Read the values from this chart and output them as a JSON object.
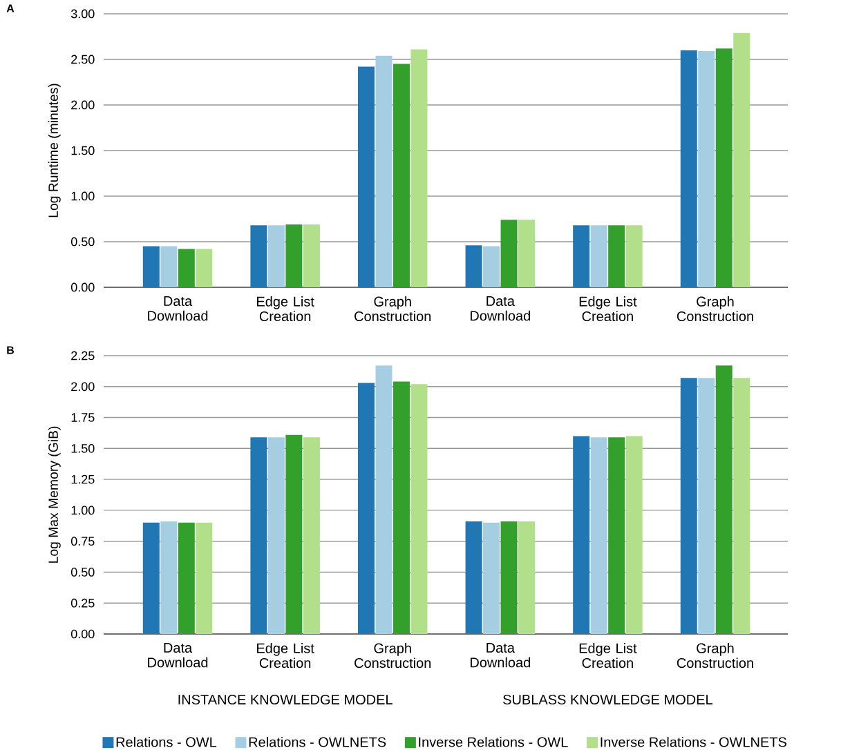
{
  "chart_data": [
    {
      "type": "bar",
      "title": "A",
      "ylabel": "Log Runtime (minutes)",
      "categories": [
        "Data Download",
        "Edge List Creation",
        "Graph Construction",
        "Data Download",
        "Edge List Creation",
        "Graph Construction"
      ],
      "series": [
        {
          "color": "#2077b4",
          "values": [
            0.45,
            0.68,
            2.42,
            0.46,
            0.68,
            2.6
          ]
        },
        {
          "color": "#a6cee3",
          "values": [
            0.45,
            0.68,
            2.54,
            0.45,
            0.68,
            2.59
          ]
        },
        {
          "color": "#33a02c",
          "values": [
            0.42,
            0.69,
            2.45,
            0.74,
            0.68,
            2.62
          ]
        },
        {
          "color": "#b2df8a",
          "values": [
            0.42,
            0.69,
            2.61,
            0.74,
            0.68,
            2.79
          ]
        }
      ],
      "ylim": [
        0,
        3
      ],
      "yticks": [
        {
          "value": 0,
          "label": "0.00"
        },
        {
          "value": 0.5,
          "label": "0.50"
        },
        {
          "value": 1,
          "label": "1.00"
        },
        {
          "value": 1.5,
          "label": "1.50"
        },
        {
          "value": 2,
          "label": "2.00"
        },
        {
          "value": 2.5,
          "label": "2.50"
        },
        {
          "value": 3,
          "label": "3.00"
        }
      ],
      "grid": "y"
    },
    {
      "type": "bar",
      "title": "B",
      "ylabel": "Log Max Memory (GiB)",
      "categories": [
        "Data Download",
        "Edge List Creation",
        "Graph Construction",
        "Data Download",
        "Edge List Creation",
        "Graph Construction"
      ],
      "series": [
        {
          "name": "Relations - OWL",
          "color": "#2077b4",
          "values": [
            0.9,
            1.59,
            2.03,
            0.91,
            1.6,
            2.07
          ]
        },
        {
          "name": "Relations - OWLNETS",
          "color": "#a6cee3",
          "values": [
            0.91,
            1.59,
            2.17,
            0.9,
            1.59,
            2.07
          ]
        },
        {
          "name": "Inverse Relations - OWL",
          "color": "#33a02c",
          "values": [
            0.9,
            1.61,
            2.04,
            0.91,
            1.59,
            2.17
          ]
        },
        {
          "name": "Inverse Relations - OWLNETS",
          "color": "#b2df8a",
          "values": [
            0.9,
            1.59,
            2.02,
            0.91,
            1.6,
            2.07
          ]
        }
      ],
      "ylim": [
        0,
        2.25
      ],
      "yticks": [
        {
          "value": 0,
          "label": "0.00"
        },
        {
          "value": 0.25,
          "label": "0.25"
        },
        {
          "value": 0.5,
          "label": "0.50"
        },
        {
          "value": 0.75,
          "label": "0.75"
        },
        {
          "value": 1,
          "label": "1.00"
        },
        {
          "value": 1.25,
          "label": "1.25"
        },
        {
          "value": 1.5,
          "label": "1.50"
        },
        {
          "value": 1.75,
          "label": "1.75"
        },
        {
          "value": 2,
          "label": "2.00"
        },
        {
          "value": 2.25,
          "label": "2.25"
        }
      ],
      "grid": "y",
      "legend": "bottom",
      "annotations": [
        "INSTANCE KNOWLEDGE MODEL",
        "SUBLASS KNOWLEDGE MODEL"
      ]
    }
  ]
}
